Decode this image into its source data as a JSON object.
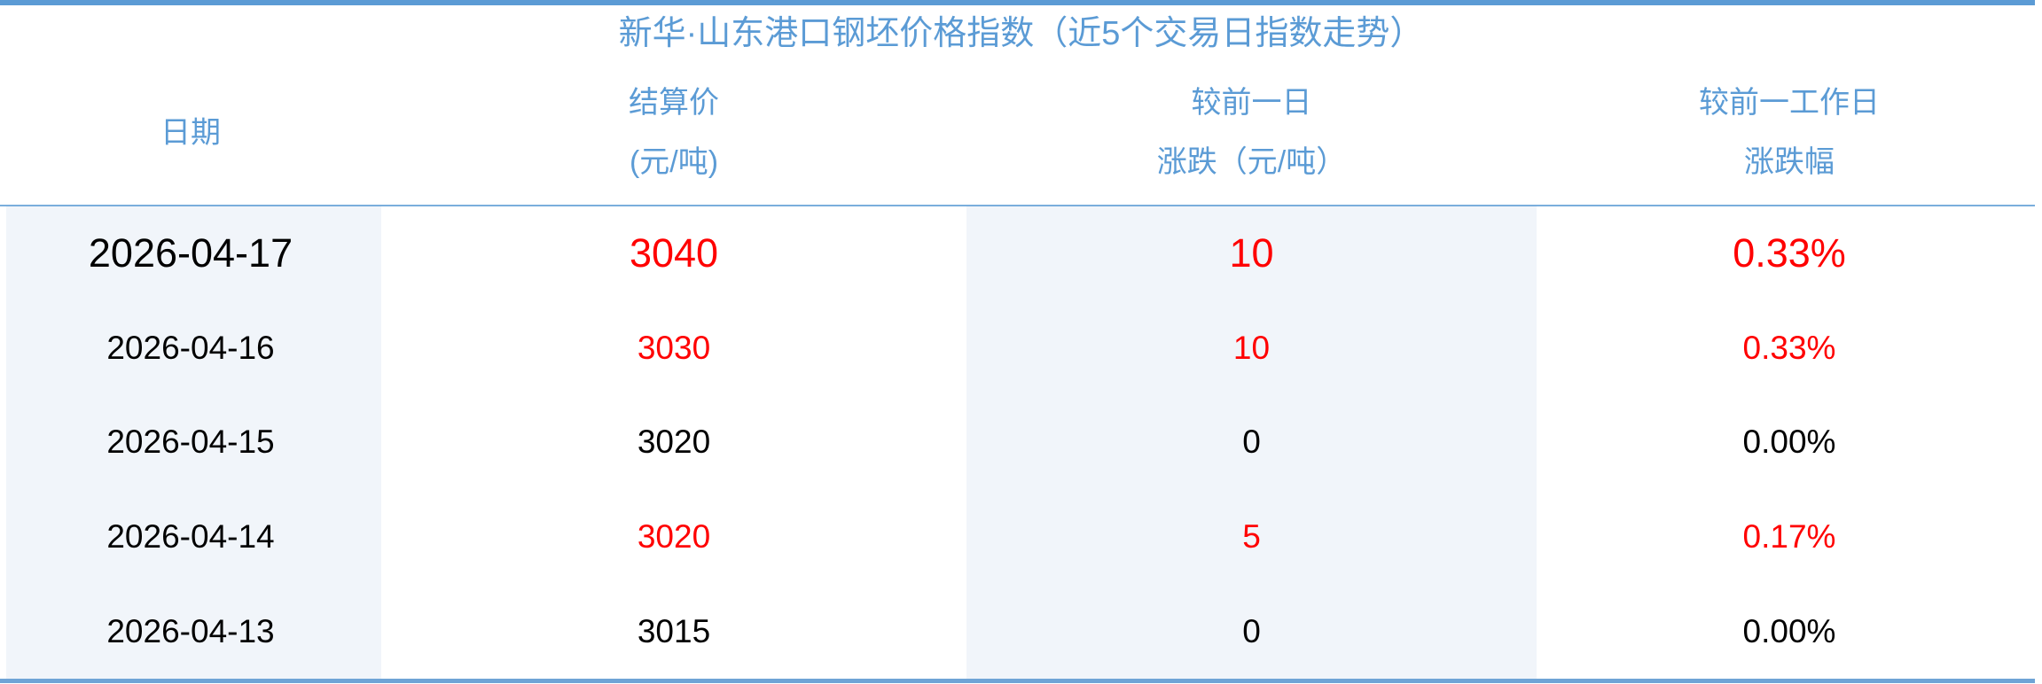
{
  "chart_data": {
    "type": "table",
    "title": "新华·山东港口钢坯价格指数（近5个交易日指数走势）",
    "columns": [
      {
        "id": "date",
        "label_line1": "日期",
        "label_line2": ""
      },
      {
        "id": "price",
        "label_line1": "结算价",
        "label_line2": "(元/吨)"
      },
      {
        "id": "change",
        "label_line1": "较前一日",
        "label_line2": "涨跌（元/吨）"
      },
      {
        "id": "pct",
        "label_line1": "较前一工作日",
        "label_line2": "涨跌幅"
      }
    ],
    "rows": [
      {
        "date": "2026-04-17",
        "price": "3040",
        "change": "10",
        "pct": "0.33%",
        "trend": "up",
        "size": "large"
      },
      {
        "date": "2026-04-16",
        "price": "3030",
        "change": "10",
        "pct": "0.33%",
        "trend": "up",
        "size": "normal"
      },
      {
        "date": "2026-04-15",
        "price": "3020",
        "change": "0",
        "pct": "0.00%",
        "trend": "flat",
        "size": "normal"
      },
      {
        "date": "2026-04-14",
        "price": "3020",
        "change": "5",
        "pct": "0.17%",
        "trend": "up",
        "size": "normal"
      },
      {
        "date": "2026-04-13",
        "price": "3015",
        "change": "0",
        "pct": "0.00%",
        "trend": "flat",
        "size": "normal"
      }
    ],
    "layout": {
      "legend": "none",
      "grid": "column stripes on columns 1 and 3",
      "row_count": 5,
      "column_count": 4
    }
  },
  "colors": {
    "accent_blue_text": "#5B9BD5",
    "top_bar": "#5B9BD5",
    "header_rule": "#7AAEDC",
    "bottom_bar": "#6FA4D6",
    "column_stripe": "#F1F5FA",
    "up_red": "#FF0000",
    "flat_black": "#000000"
  }
}
